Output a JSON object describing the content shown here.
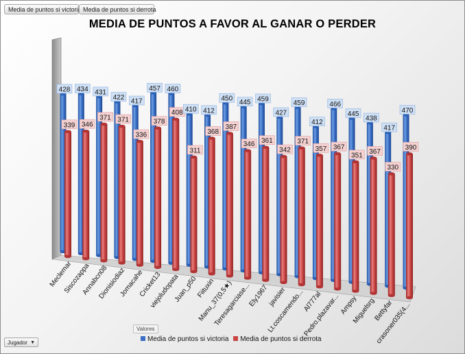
{
  "pivot_fields": {
    "victoria_button": "Media de puntos si victoria",
    "derrota_button": "Media de puntos si derrota",
    "valores_label": "Valores",
    "jugador_dropdown": "Jugador"
  },
  "colors": {
    "victoria": "#3a6fc4",
    "derrota": "#c94545"
  },
  "chart_data": {
    "type": "bar",
    "title": "MEDIA DE PUNTOS A FAVOR AL GANAR O PERDER",
    "xlabel": "",
    "ylabel": "",
    "ylim": [
      0,
      480
    ],
    "legend_position": "bottom",
    "categories": [
      "Meclemar",
      "Siscozappa",
      "Annabcn08",
      "Dionisiodiaz",
      "Jomacahe",
      "Cricket13",
      "viejoludopata",
      "Juan_p50",
      "Fiituxin",
      "Manu_37(0,5★)",
      "Teresagarciase...",
      "Ely1967",
      "javisier",
      "Lt.coscamendo...",
      "Al777al",
      "Pedro.plazavar...",
      "Ampsy",
      "Miguelsrg",
      "Bettyfar",
      "crasoner035(4..."
    ],
    "series": [
      {
        "name": "Media de puntos si victoria",
        "values": [
          428,
          434,
          431,
          422,
          417,
          457,
          460,
          410,
          412,
          450,
          445,
          459,
          427,
          459,
          412,
          466,
          445,
          438,
          417,
          470
        ]
      },
      {
        "name": "Media de puntos si derrota",
        "values": [
          339,
          346,
          371,
          371,
          336,
          378,
          408,
          311,
          368,
          387,
          346,
          361,
          342,
          371,
          357,
          367,
          351,
          367,
          330,
          390
        ]
      }
    ]
  }
}
